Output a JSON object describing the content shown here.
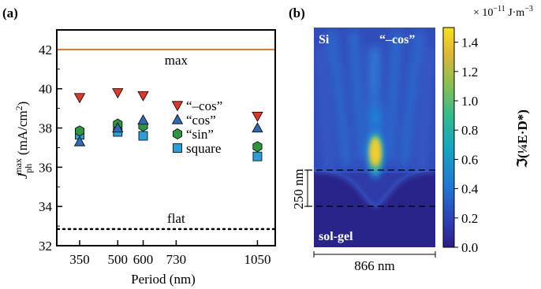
{
  "chart_data": [
    {
      "panel_label": "(a)",
      "type": "scatter",
      "xlabel": "Period (nm)",
      "ylabel_main": "J",
      "ylabel_sub": "ph",
      "ylabel_sup": "max",
      "ylabel_unit": "(mA/cm",
      "ylabel_unit_sup": "2",
      "ylabel_unit_end": ")",
      "xlim": [
        260,
        1120
      ],
      "ylim": [
        32,
        43
      ],
      "xticks": [
        350,
        500,
        600,
        730,
        1050
      ],
      "yticks": [
        32,
        34,
        36,
        38,
        40,
        42
      ],
      "x": [
        350,
        500,
        600,
        1050
      ],
      "series": [
        {
          "name": "“–cos”",
          "marker": "triangle-down",
          "color": "#e0372b",
          "values": [
            39.55,
            39.8,
            39.65,
            38.6
          ]
        },
        {
          "name": "“cos”",
          "marker": "triangle-up",
          "color": "#2e6bb2",
          "values": [
            37.3,
            38.0,
            38.4,
            38.0
          ]
        },
        {
          "name": "“sin”",
          "marker": "hexagon",
          "color": "#2e9440",
          "values": [
            37.85,
            38.2,
            38.1,
            37.05
          ]
        },
        {
          "name": "square",
          "marker": "square",
          "color": "#2d9ed8",
          "values": [
            37.65,
            37.8,
            37.6,
            36.55
          ]
        }
      ],
      "reference_lines": [
        {
          "label": "max",
          "y": 42.0,
          "style": "solid",
          "color": "#d8781e"
        },
        {
          "label": "flat",
          "y": 32.85,
          "style": "dotted",
          "color": "#000000"
        }
      ],
      "legend_position": "right"
    },
    {
      "panel_label": "(b)",
      "type": "heatmap",
      "title_left": "Si",
      "title_right": "“–cos”",
      "bottom_label": "sol-gel",
      "width_label": "866 nm",
      "height_label": "250 nm",
      "colorbar_label": "ℑ(¼E·D*)",
      "colorbar_unit_prefix": "× 10",
      "colorbar_unit_exp": "−11",
      "colorbar_unit_suffix": " J·m",
      "colorbar_unit_exp2": "−3",
      "colorbar_range": [
        0,
        1.5
      ],
      "colorbar_ticks": [
        "0.0",
        "0.2",
        "0.4",
        "0.6",
        "0.8",
        "1.0",
        "1.2",
        "1.4"
      ]
    }
  ]
}
